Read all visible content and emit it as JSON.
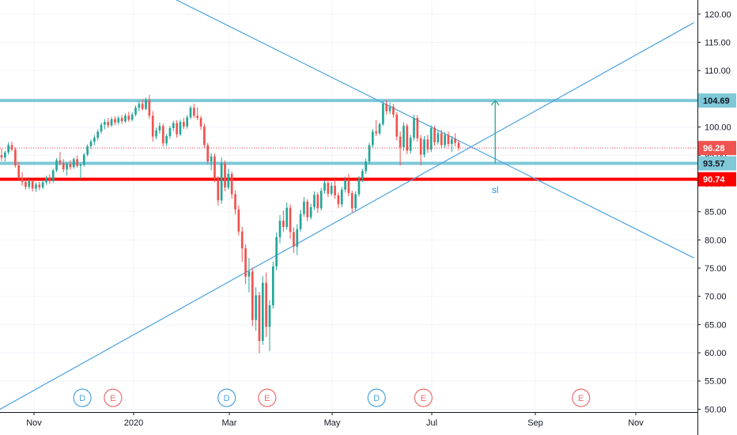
{
  "chart_data": {
    "type": "candlestick",
    "y_axis": {
      "ticks": [
        "120.00",
        "115.00",
        "110.00",
        "105.00",
        "100.00",
        "95.00",
        "90.00",
        "85.00",
        "80.00",
        "75.00",
        "70.00",
        "65.00",
        "60.00",
        "55.00",
        "50.00"
      ],
      "ylim": [
        49.5,
        122.5
      ]
    },
    "x_axis": {
      "ticks": [
        "Nov",
        "2020",
        "Mar",
        "May",
        "Jul",
        "Sep",
        "Nov"
      ]
    },
    "horizontal_levels": [
      {
        "value": 104.69,
        "label": "104.69",
        "color": "#7ec8d8",
        "tag_color": "#7ec8d8",
        "tag_text_color": "#131722"
      },
      {
        "value": 96.28,
        "label": "96.28",
        "color": "#f23645",
        "dotted": true,
        "tag_color": "#ef5350",
        "tag_text_color": "#ffffff"
      },
      {
        "value": 93.57,
        "label": "93.57",
        "color": "#7ec8d8",
        "tag_color": "#7ec8d8",
        "tag_text_color": "#131722"
      },
      {
        "value": 90.74,
        "label": "90.74",
        "color": "#ff0000",
        "tag_color": "#ff0000",
        "tag_text_color": "#ffffff"
      }
    ],
    "trendlines": [
      {
        "name": "descending",
        "from": {
          "t": 0.245,
          "price": 123.0
        },
        "to": {
          "t": 0.995,
          "price": 76.8
        },
        "color": "#4aa3e0"
      },
      {
        "name": "ascending",
        "from": {
          "t": 0.0,
          "price": 50.0
        },
        "to": {
          "t": 0.995,
          "price": 118.5
        },
        "color": "#4aa3e0"
      }
    ],
    "arrow": {
      "t": 0.71,
      "from_price": 93.57,
      "to_price": 104.69,
      "color": "#26a69a"
    },
    "annotation": {
      "text": "sl",
      "t": 0.71,
      "price": 88.3,
      "color": "#2196f3"
    },
    "events": [
      {
        "letter": "D",
        "type": "dividend",
        "t": 0.118,
        "color": "#4aa3e0"
      },
      {
        "letter": "E",
        "type": "earnings",
        "t": 0.162,
        "color": "#f06c6c"
      },
      {
        "letter": "D",
        "type": "dividend",
        "t": 0.325,
        "color": "#4aa3e0"
      },
      {
        "letter": "E",
        "type": "earnings",
        "t": 0.383,
        "color": "#f06c6c"
      },
      {
        "letter": "D",
        "type": "dividend",
        "t": 0.54,
        "color": "#4aa3e0"
      },
      {
        "letter": "E",
        "type": "earnings",
        "t": 0.607,
        "color": "#f06c6c"
      },
      {
        "letter": "E",
        "type": "earnings",
        "t": 0.833,
        "color": "#f06c6c"
      }
    ],
    "candles": [
      {
        "o": 95.0,
        "h": 96.2,
        "l": 94.0,
        "c": 94.6
      },
      {
        "o": 94.6,
        "h": 95.8,
        "l": 93.9,
        "c": 95.5
      },
      {
        "o": 95.5,
        "h": 97.3,
        "l": 95.1,
        "c": 96.8
      },
      {
        "o": 96.8,
        "h": 97.4,
        "l": 95.7,
        "c": 96.0
      },
      {
        "o": 96.0,
        "h": 96.4,
        "l": 92.8,
        "c": 93.2
      },
      {
        "o": 93.2,
        "h": 93.8,
        "l": 90.5,
        "c": 91.0
      },
      {
        "o": 91.0,
        "h": 92.0,
        "l": 89.6,
        "c": 90.3
      },
      {
        "o": 90.3,
        "h": 90.9,
        "l": 88.9,
        "c": 89.4
      },
      {
        "o": 89.4,
        "h": 90.8,
        "l": 89.0,
        "c": 90.4
      },
      {
        "o": 90.4,
        "h": 90.7,
        "l": 88.6,
        "c": 89.1
      },
      {
        "o": 89.1,
        "h": 90.2,
        "l": 88.5,
        "c": 89.8
      },
      {
        "o": 89.8,
        "h": 90.3,
        "l": 88.8,
        "c": 89.3
      },
      {
        "o": 89.3,
        "h": 90.6,
        "l": 89.0,
        "c": 90.2
      },
      {
        "o": 90.2,
        "h": 91.4,
        "l": 89.8,
        "c": 91.0
      },
      {
        "o": 91.0,
        "h": 91.6,
        "l": 89.9,
        "c": 90.4
      },
      {
        "o": 90.4,
        "h": 92.6,
        "l": 90.1,
        "c": 92.3
      },
      {
        "o": 92.3,
        "h": 94.5,
        "l": 92.0,
        "c": 94.1
      },
      {
        "o": 94.1,
        "h": 95.6,
        "l": 93.2,
        "c": 93.6
      },
      {
        "o": 93.6,
        "h": 94.3,
        "l": 92.0,
        "c": 92.5
      },
      {
        "o": 92.5,
        "h": 93.8,
        "l": 91.4,
        "c": 93.4
      },
      {
        "o": 93.4,
        "h": 94.1,
        "l": 92.4,
        "c": 92.9
      },
      {
        "o": 92.9,
        "h": 94.6,
        "l": 92.6,
        "c": 94.3
      },
      {
        "o": 94.3,
        "h": 94.9,
        "l": 92.8,
        "c": 93.1
      },
      {
        "o": 93.1,
        "h": 93.6,
        "l": 90.8,
        "c": 93.3
      },
      {
        "o": 93.3,
        "h": 95.4,
        "l": 93.0,
        "c": 95.1
      },
      {
        "o": 95.1,
        "h": 96.9,
        "l": 94.8,
        "c": 96.6
      },
      {
        "o": 96.6,
        "h": 97.8,
        "l": 96.1,
        "c": 97.4
      },
      {
        "o": 97.4,
        "h": 98.6,
        "l": 96.8,
        "c": 98.1
      },
      {
        "o": 98.1,
        "h": 99.6,
        "l": 97.6,
        "c": 99.2
      },
      {
        "o": 99.2,
        "h": 100.8,
        "l": 98.8,
        "c": 100.4
      },
      {
        "o": 100.4,
        "h": 101.4,
        "l": 99.6,
        "c": 100.9
      },
      {
        "o": 100.9,
        "h": 101.6,
        "l": 99.8,
        "c": 100.3
      },
      {
        "o": 100.3,
        "h": 101.8,
        "l": 100.0,
        "c": 101.4
      },
      {
        "o": 101.4,
        "h": 101.9,
        "l": 100.3,
        "c": 100.8
      },
      {
        "o": 100.8,
        "h": 102.0,
        "l": 100.4,
        "c": 101.6
      },
      {
        "o": 101.6,
        "h": 102.1,
        "l": 100.6,
        "c": 101.0
      },
      {
        "o": 101.0,
        "h": 102.4,
        "l": 100.7,
        "c": 102.0
      },
      {
        "o": 102.0,
        "h": 102.7,
        "l": 100.9,
        "c": 101.3
      },
      {
        "o": 101.3,
        "h": 102.6,
        "l": 101.0,
        "c": 102.2
      },
      {
        "o": 102.2,
        "h": 103.8,
        "l": 101.9,
        "c": 103.4
      },
      {
        "o": 103.4,
        "h": 104.6,
        "l": 102.8,
        "c": 104.1
      },
      {
        "o": 104.1,
        "h": 104.9,
        "l": 102.9,
        "c": 103.2
      },
      {
        "o": 103.2,
        "h": 105.2,
        "l": 103.0,
        "c": 104.8
      },
      {
        "o": 104.8,
        "h": 105.7,
        "l": 101.5,
        "c": 102.0
      },
      {
        "o": 102.0,
        "h": 102.8,
        "l": 97.4,
        "c": 98.3
      },
      {
        "o": 98.3,
        "h": 99.9,
        "l": 97.8,
        "c": 99.4
      },
      {
        "o": 99.4,
        "h": 100.8,
        "l": 98.8,
        "c": 100.2
      },
      {
        "o": 100.2,
        "h": 100.6,
        "l": 96.5,
        "c": 97.1
      },
      {
        "o": 97.1,
        "h": 98.8,
        "l": 96.6,
        "c": 98.4
      },
      {
        "o": 98.4,
        "h": 100.2,
        "l": 97.9,
        "c": 99.8
      },
      {
        "o": 99.8,
        "h": 101.1,
        "l": 99.3,
        "c": 100.7
      },
      {
        "o": 100.7,
        "h": 101.2,
        "l": 98.1,
        "c": 98.7
      },
      {
        "o": 98.7,
        "h": 101.3,
        "l": 98.4,
        "c": 100.9
      },
      {
        "o": 100.9,
        "h": 101.6,
        "l": 99.6,
        "c": 100.1
      },
      {
        "o": 100.1,
        "h": 102.1,
        "l": 99.7,
        "c": 101.7
      },
      {
        "o": 101.7,
        "h": 103.8,
        "l": 101.4,
        "c": 103.4
      },
      {
        "o": 103.4,
        "h": 104.1,
        "l": 101.6,
        "c": 102.0
      },
      {
        "o": 102.0,
        "h": 103.5,
        "l": 101.2,
        "c": 101.6
      },
      {
        "o": 101.6,
        "h": 102.0,
        "l": 99.5,
        "c": 100.1
      },
      {
        "o": 100.1,
        "h": 100.6,
        "l": 96.3,
        "c": 96.8
      },
      {
        "o": 96.8,
        "h": 97.2,
        "l": 93.4,
        "c": 93.9
      },
      {
        "o": 93.9,
        "h": 95.4,
        "l": 92.3,
        "c": 94.8
      },
      {
        "o": 94.8,
        "h": 95.3,
        "l": 90.2,
        "c": 90.8
      },
      {
        "o": 90.8,
        "h": 91.3,
        "l": 86.1,
        "c": 87.0
      },
      {
        "o": 87.0,
        "h": 94.6,
        "l": 86.4,
        "c": 93.6
      },
      {
        "o": 93.6,
        "h": 94.1,
        "l": 88.6,
        "c": 89.3
      },
      {
        "o": 89.3,
        "h": 92.6,
        "l": 88.9,
        "c": 91.7
      },
      {
        "o": 91.7,
        "h": 92.1,
        "l": 87.3,
        "c": 88.1
      },
      {
        "o": 88.1,
        "h": 88.8,
        "l": 84.5,
        "c": 85.4
      },
      {
        "o": 85.4,
        "h": 86.1,
        "l": 80.8,
        "c": 81.5
      },
      {
        "o": 81.5,
        "h": 82.3,
        "l": 76.1,
        "c": 78.5
      },
      {
        "o": 78.5,
        "h": 79.2,
        "l": 72.2,
        "c": 73.5
      },
      {
        "o": 73.5,
        "h": 76.8,
        "l": 70.7,
        "c": 74.4
      },
      {
        "o": 74.4,
        "h": 75.1,
        "l": 64.7,
        "c": 65.8
      },
      {
        "o": 65.8,
        "h": 71.6,
        "l": 63.9,
        "c": 70.2
      },
      {
        "o": 70.2,
        "h": 70.8,
        "l": 59.9,
        "c": 62.1
      },
      {
        "o": 62.1,
        "h": 73.6,
        "l": 61.4,
        "c": 72.4
      },
      {
        "o": 72.4,
        "h": 74.2,
        "l": 62.8,
        "c": 64.6
      },
      {
        "o": 64.6,
        "h": 69.3,
        "l": 60.3,
        "c": 68.4
      },
      {
        "o": 68.4,
        "h": 76.2,
        "l": 67.8,
        "c": 75.3
      },
      {
        "o": 75.3,
        "h": 81.3,
        "l": 74.6,
        "c": 80.5
      },
      {
        "o": 80.5,
        "h": 84.4,
        "l": 79.4,
        "c": 83.4
      },
      {
        "o": 83.4,
        "h": 85.2,
        "l": 81.4,
        "c": 82.3
      },
      {
        "o": 82.3,
        "h": 86.6,
        "l": 81.8,
        "c": 85.7
      },
      {
        "o": 85.7,
        "h": 86.3,
        "l": 80.2,
        "c": 81.4
      },
      {
        "o": 81.4,
        "h": 82.2,
        "l": 77.7,
        "c": 78.8
      },
      {
        "o": 78.8,
        "h": 82.8,
        "l": 77.3,
        "c": 81.9
      },
      {
        "o": 81.9,
        "h": 85.4,
        "l": 81.4,
        "c": 84.6
      },
      {
        "o": 84.6,
        "h": 87.6,
        "l": 84.1,
        "c": 86.8
      },
      {
        "o": 86.8,
        "h": 87.2,
        "l": 83.3,
        "c": 84.0
      },
      {
        "o": 84.0,
        "h": 86.4,
        "l": 83.6,
        "c": 85.8
      },
      {
        "o": 85.8,
        "h": 88.6,
        "l": 85.3,
        "c": 88.0
      },
      {
        "o": 88.0,
        "h": 88.4,
        "l": 84.8,
        "c": 85.6
      },
      {
        "o": 85.6,
        "h": 89.2,
        "l": 85.2,
        "c": 88.7
      },
      {
        "o": 88.7,
        "h": 90.6,
        "l": 88.2,
        "c": 90.1
      },
      {
        "o": 90.1,
        "h": 90.4,
        "l": 87.6,
        "c": 88.2
      },
      {
        "o": 88.2,
        "h": 90.2,
        "l": 87.8,
        "c": 89.6
      },
      {
        "o": 89.6,
        "h": 90.8,
        "l": 87.3,
        "c": 87.9
      },
      {
        "o": 87.9,
        "h": 88.4,
        "l": 85.6,
        "c": 86.3
      },
      {
        "o": 86.3,
        "h": 89.4,
        "l": 85.8,
        "c": 88.9
      },
      {
        "o": 88.9,
        "h": 91.2,
        "l": 88.4,
        "c": 90.6
      },
      {
        "o": 90.6,
        "h": 91.7,
        "l": 87.7,
        "c": 88.3
      },
      {
        "o": 88.3,
        "h": 88.7,
        "l": 84.8,
        "c": 85.6
      },
      {
        "o": 85.6,
        "h": 88.6,
        "l": 85.2,
        "c": 88.1
      },
      {
        "o": 88.1,
        "h": 91.3,
        "l": 87.7,
        "c": 90.8
      },
      {
        "o": 90.8,
        "h": 92.6,
        "l": 90.2,
        "c": 92.2
      },
      {
        "o": 92.2,
        "h": 94.4,
        "l": 91.7,
        "c": 93.9
      },
      {
        "o": 93.9,
        "h": 97.2,
        "l": 93.4,
        "c": 96.8
      },
      {
        "o": 96.8,
        "h": 99.6,
        "l": 96.3,
        "c": 99.2
      },
      {
        "o": 99.2,
        "h": 101.2,
        "l": 98.4,
        "c": 98.9
      },
      {
        "o": 98.9,
        "h": 100.8,
        "l": 98.5,
        "c": 100.5
      },
      {
        "o": 100.5,
        "h": 104.6,
        "l": 100.2,
        "c": 104.1
      },
      {
        "o": 104.1,
        "h": 104.8,
        "l": 102.2,
        "c": 102.8
      },
      {
        "o": 102.8,
        "h": 104.3,
        "l": 102.3,
        "c": 103.6
      },
      {
        "o": 103.6,
        "h": 104.1,
        "l": 101.6,
        "c": 102.2
      },
      {
        "o": 102.2,
        "h": 102.6,
        "l": 97.6,
        "c": 98.3
      },
      {
        "o": 98.3,
        "h": 99.2,
        "l": 93.2,
        "c": 96.4
      },
      {
        "o": 96.4,
        "h": 100.8,
        "l": 95.8,
        "c": 100.2
      },
      {
        "o": 100.2,
        "h": 100.6,
        "l": 95.2,
        "c": 95.8
      },
      {
        "o": 95.8,
        "h": 98.6,
        "l": 95.3,
        "c": 98.1
      },
      {
        "o": 98.1,
        "h": 102.2,
        "l": 97.6,
        "c": 101.6
      },
      {
        "o": 101.6,
        "h": 102.1,
        "l": 97.4,
        "c": 98.0
      },
      {
        "o": 98.0,
        "h": 98.6,
        "l": 93.2,
        "c": 95.1
      },
      {
        "o": 95.1,
        "h": 98.4,
        "l": 94.6,
        "c": 97.8
      },
      {
        "o": 97.8,
        "h": 98.6,
        "l": 95.4,
        "c": 96.0
      },
      {
        "o": 96.0,
        "h": 100.3,
        "l": 95.6,
        "c": 99.8
      },
      {
        "o": 99.8,
        "h": 100.2,
        "l": 96.7,
        "c": 97.3
      },
      {
        "o": 97.3,
        "h": 99.4,
        "l": 96.9,
        "c": 98.9
      },
      {
        "o": 98.9,
        "h": 99.5,
        "l": 96.2,
        "c": 96.8
      },
      {
        "o": 96.8,
        "h": 99.1,
        "l": 96.3,
        "c": 98.6
      },
      {
        "o": 98.6,
        "h": 99.2,
        "l": 96.5,
        "c": 97.0
      },
      {
        "o": 97.0,
        "h": 98.4,
        "l": 95.6,
        "c": 97.9
      },
      {
        "o": 97.9,
        "h": 98.9,
        "l": 96.6,
        "c": 97.2
      },
      {
        "o": 97.2,
        "h": 97.6,
        "l": 95.8,
        "c": 96.28
      }
    ]
  }
}
